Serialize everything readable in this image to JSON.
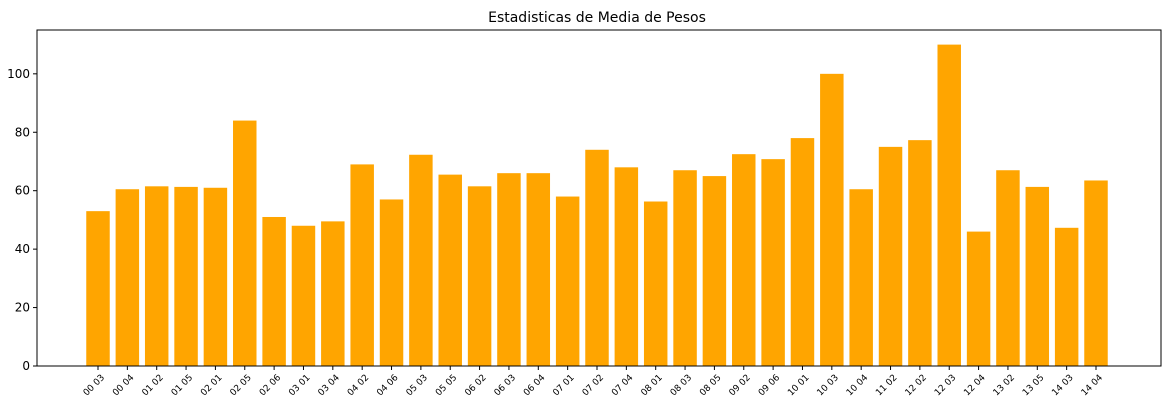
{
  "chart_data": {
    "type": "bar",
    "title": "Estadisticas de Media de Pesos",
    "xlabel": "",
    "ylabel": "",
    "ylim": [
      0,
      115
    ],
    "yticks": [
      "0",
      "20",
      "40",
      "60",
      "80",
      "100"
    ],
    "grid": false,
    "color": "#FFA500",
    "categories": [
      "00 03",
      "00 04",
      "01 02",
      "01 05",
      "02 01",
      "02 05",
      "02 06",
      "03 01",
      "03 04",
      "04 02",
      "04 06",
      "05 03",
      "05 05",
      "06 02",
      "06 03",
      "06 04",
      "07 01",
      "07 02",
      "07 04",
      "08 01",
      "08 03",
      "08 05",
      "09 02",
      "09 06",
      "10 01",
      "10 03",
      "10 04",
      "11 02",
      "12 02",
      "12 03",
      "12 04",
      "13 02",
      "13 05",
      "14 03",
      "14 04"
    ],
    "values": [
      53,
      60.5,
      61.5,
      61.3,
      61,
      84,
      51,
      48,
      49.5,
      69,
      57,
      72.3,
      65.5,
      61.5,
      66,
      66,
      58,
      74,
      68,
      56.3,
      67,
      65,
      72.5,
      70.8,
      78,
      100,
      60.5,
      75,
      77.3,
      110,
      46,
      67,
      61.3,
      47.3,
      63.5
    ]
  }
}
